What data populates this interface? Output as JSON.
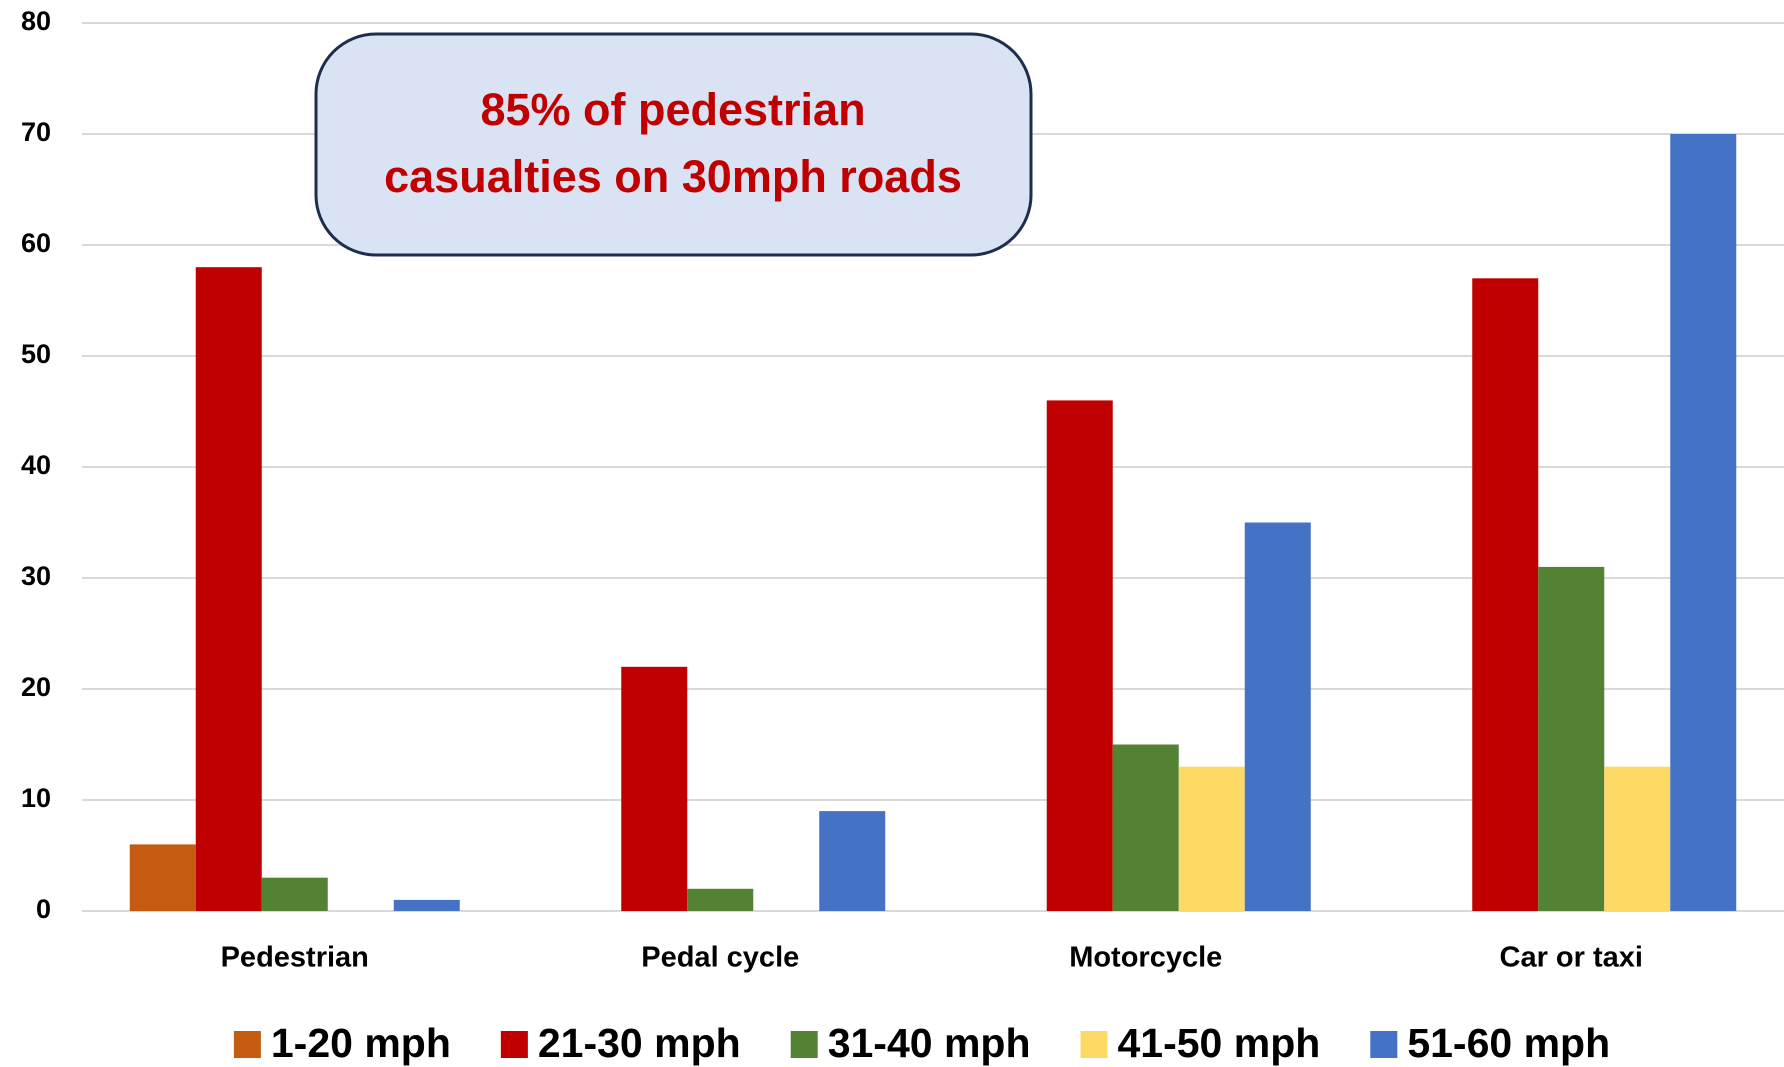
{
  "chart_data": {
    "type": "bar",
    "categories": [
      "Pedestrian",
      "Pedal cycle",
      "Motorcycle",
      "Car or taxi"
    ],
    "series": [
      {
        "name": "1-20 mph",
        "color": "#c55a11",
        "values": [
          6,
          0,
          0,
          0
        ]
      },
      {
        "name": "21-30 mph",
        "color": "#c00000",
        "values": [
          58,
          22,
          46,
          57
        ]
      },
      {
        "name": "31-40 mph",
        "color": "#548235",
        "values": [
          3,
          2,
          15,
          31
        ]
      },
      {
        "name": "41-50 mph",
        "color": "#ffd966",
        "values": [
          0,
          0,
          13,
          13
        ]
      },
      {
        "name": "51-60 mph",
        "color": "#4472c4",
        "values": [
          1,
          9,
          35,
          70
        ]
      }
    ],
    "ylim": [
      0,
      80
    ],
    "yticks": [
      0,
      10,
      20,
      30,
      40,
      50,
      60,
      70,
      80
    ],
    "grid": true,
    "legend": "bottom",
    "annotation": [
      "85% of pedestrian",
      "casualties on 30mph roads"
    ]
  }
}
